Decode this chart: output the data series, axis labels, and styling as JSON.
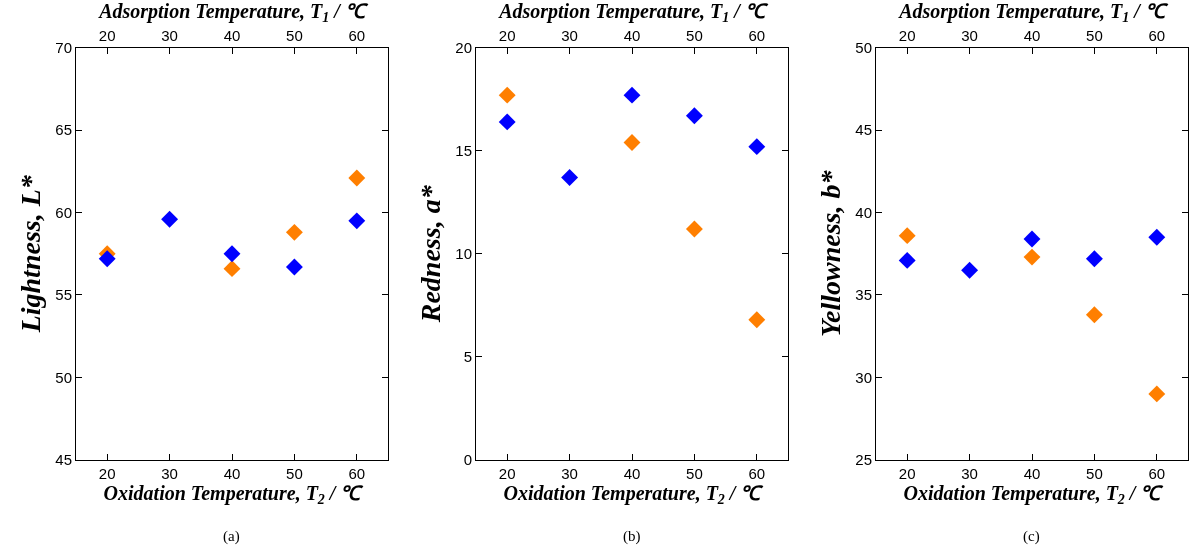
{
  "chart_data": [
    {
      "type": "scatter",
      "marker": "diamond",
      "ylabel": "Lightness, L*",
      "xlabel": "Oxidation Temperature, T$_{2}$ / ℃",
      "x2label": "Adsorption Temperature, T$_{1}$ / ℃",
      "x": [
        20,
        30,
        40,
        50,
        60
      ],
      "xlim": [
        15,
        65
      ],
      "xticks": [
        20,
        30,
        40,
        50,
        60
      ],
      "x2lim": [
        15,
        65
      ],
      "x2ticks": [
        20,
        30,
        40,
        50,
        60
      ],
      "ylim": [
        45,
        70
      ],
      "yticks": [
        45,
        50,
        55,
        60,
        65,
        70
      ],
      "series": [
        {
          "color": "#ff7f00",
          "values": [
            57.5,
            null,
            56.6,
            58.8,
            62.1
          ]
        },
        {
          "color": "#0000ff",
          "values": [
            57.2,
            59.6,
            57.5,
            56.7,
            59.5
          ]
        }
      ],
      "annotations": [
        "(a)"
      ]
    },
    {
      "type": "scatter",
      "marker": "diamond",
      "ylabel": "Redness, a*",
      "xlabel": "Oxidation Temperature, T$_{2}$ / ℃",
      "x2label": "Adsorption Temperature, T$_{1}$ / ℃",
      "x": [
        20,
        30,
        40,
        50,
        60
      ],
      "xlim": [
        15,
        65
      ],
      "xticks": [
        20,
        30,
        40,
        50,
        60
      ],
      "x2lim": [
        15,
        65
      ],
      "x2ticks": [
        20,
        30,
        40,
        50,
        60
      ],
      "ylim": [
        0,
        20
      ],
      "yticks": [
        0,
        5,
        10,
        15,
        20
      ],
      "series": [
        {
          "color": "#ff7f00",
          "values": [
            17.7,
            null,
            15.4,
            11.2,
            6.8
          ]
        },
        {
          "color": "#0000ff",
          "values": [
            16.4,
            13.7,
            17.7,
            16.7,
            15.2
          ]
        }
      ],
      "annotations": [
        "(b)"
      ]
    },
    {
      "type": "scatter",
      "marker": "diamond",
      "ylabel": "Yellowness, b*",
      "xlabel": "Oxidation Temperature, T$_{2}$ / ℃",
      "x2label": "Adsorption Temperature, T$_{1}$ / ℃",
      "x": [
        20,
        30,
        40,
        50,
        60
      ],
      "xlim": [
        15,
        65
      ],
      "xticks": [
        20,
        30,
        40,
        50,
        60
      ],
      "x2lim": [
        15,
        65
      ],
      "x2ticks": [
        20,
        30,
        40,
        50,
        60
      ],
      "ylim": [
        25,
        50
      ],
      "yticks": [
        25,
        30,
        35,
        40,
        45,
        50
      ],
      "series": [
        {
          "color": "#ff7f00",
          "values": [
            38.6,
            null,
            37.3,
            33.8,
            29.0
          ]
        },
        {
          "color": "#0000ff",
          "values": [
            37.1,
            36.5,
            38.4,
            37.2,
            38.5
          ]
        }
      ],
      "annotations": [
        "(c)"
      ]
    }
  ]
}
